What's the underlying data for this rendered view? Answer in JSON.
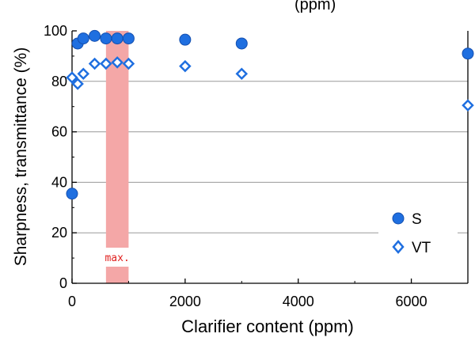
{
  "chart_data": {
    "type": "scatter",
    "title": "",
    "top_fragment": "(ppm)",
    "xlabel": "Clarifier content (ppm)",
    "ylabel": "Sharpness, transmittance (%)",
    "xlim": [
      0,
      7000
    ],
    "ylim": [
      0,
      100
    ],
    "x_ticks": [
      0,
      2000,
      4000,
      6000
    ],
    "y_ticks": [
      0,
      20,
      40,
      60,
      80,
      100
    ],
    "grid": "horizontal",
    "legend_position": "bottom-right",
    "series": [
      {
        "name": "S",
        "marker": "circle",
        "color": "#1f6fe0",
        "x": [
          0,
          100,
          200,
          400,
          600,
          800,
          1000,
          2000,
          3000,
          7000
        ],
        "y": [
          35.5,
          95,
          97,
          98,
          97,
          97,
          97,
          96.5,
          95,
          91
        ]
      },
      {
        "name": "VT",
        "marker": "diamond",
        "color": "#1f6fe0",
        "x": [
          0,
          100,
          200,
          400,
          600,
          800,
          1000,
          2000,
          3000,
          7000
        ],
        "y": [
          81.5,
          79,
          83,
          87,
          87,
          87.5,
          87,
          86,
          83,
          70.5
        ]
      }
    ],
    "highlight_band": {
      "x_range": [
        600,
        1000
      ],
      "label": "max.",
      "color": "#f4a7a7"
    }
  }
}
